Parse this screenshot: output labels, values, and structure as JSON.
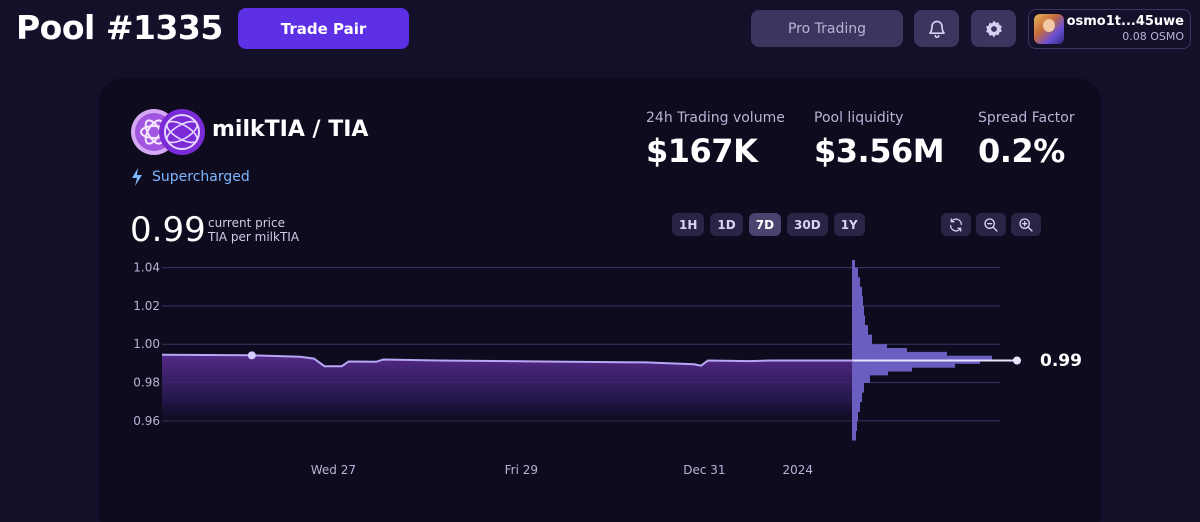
{
  "header": {
    "pool_title": "Pool #1335",
    "trade_pair_label": "Trade Pair",
    "pro_trading_label": "Pro Trading",
    "bell_icon": "bell-icon",
    "settings_icon": "gear-icon",
    "wallet": {
      "address": "osmo1t...45uwe",
      "balance": "0.08 OSMO"
    }
  },
  "pool": {
    "pair_name": "milkTIA / TIA",
    "supercharged_label": "Supercharged",
    "stats": [
      {
        "label": "24h Trading volume",
        "value": "$167K"
      },
      {
        "label": "Pool liquidity",
        "value": "$3.56M"
      },
      {
        "label": "Spread Factor",
        "value": "0.2%"
      }
    ],
    "current_price": "0.99",
    "price_caption": "current price",
    "price_unit": "TIA per milkTIA",
    "range_buttons": [
      "1H",
      "1D",
      "7D",
      "30D",
      "1Y"
    ],
    "active_range": "7D",
    "zoom_icons": [
      "refresh-icon",
      "zoom-out-icon",
      "zoom-in-icon"
    ],
    "price_tag": "0.99"
  },
  "colors": {
    "accent": "#5d30e6",
    "line": "#b7a7f5",
    "histogram": "#6a5fc0",
    "supercharged": "#7eb8ff"
  },
  "chart_data": {
    "type": "line",
    "ylim": [
      0.95,
      1.045
    ],
    "y_ticks": [
      "1.04",
      "1.02",
      "1.00",
      "0.98",
      "0.96"
    ],
    "y_tick_values": [
      1.04,
      1.02,
      1.0,
      0.98,
      0.96
    ],
    "x_ticks": [
      "Wed 27",
      "Fri 29",
      "Dec 31",
      "2024"
    ],
    "x_tick_positions": [
      0.248,
      0.52,
      0.785,
      0.92
    ],
    "series": [
      {
        "values": [
          [
            0.0,
            0.9945
          ],
          [
            0.13,
            0.9942
          ],
          [
            0.2,
            0.9935
          ],
          [
            0.22,
            0.9925
          ],
          [
            0.235,
            0.9885
          ],
          [
            0.26,
            0.9885
          ],
          [
            0.27,
            0.991
          ],
          [
            0.31,
            0.9908
          ],
          [
            0.32,
            0.992
          ],
          [
            0.4,
            0.9915
          ],
          [
            0.55,
            0.991
          ],
          [
            0.7,
            0.9905
          ],
          [
            0.77,
            0.9895
          ],
          [
            0.78,
            0.9888
          ],
          [
            0.79,
            0.9915
          ],
          [
            0.85,
            0.9912
          ],
          [
            0.88,
            0.9915
          ],
          [
            1.0,
            0.9915
          ]
        ]
      }
    ],
    "hover_point": [
      0.13,
      0.9942
    ],
    "current_price": 0.9915,
    "liquidity_depth": {
      "prices": [
        1.044,
        1.04,
        1.035,
        1.03,
        1.025,
        1.02,
        1.015,
        1.01,
        1.005,
        1.0,
        0.998,
        0.996,
        0.994,
        0.992,
        0.99,
        0.988,
        0.986,
        0.984,
        0.98,
        0.975,
        0.97,
        0.965,
        0.96,
        0.955,
        0.95
      ],
      "depth": [
        3,
        6,
        8,
        10,
        11,
        12,
        13,
        16,
        20,
        35,
        55,
        95,
        140,
        128,
        103,
        60,
        36,
        18,
        12,
        10,
        8,
        6,
        5,
        4,
        3
      ]
    }
  }
}
